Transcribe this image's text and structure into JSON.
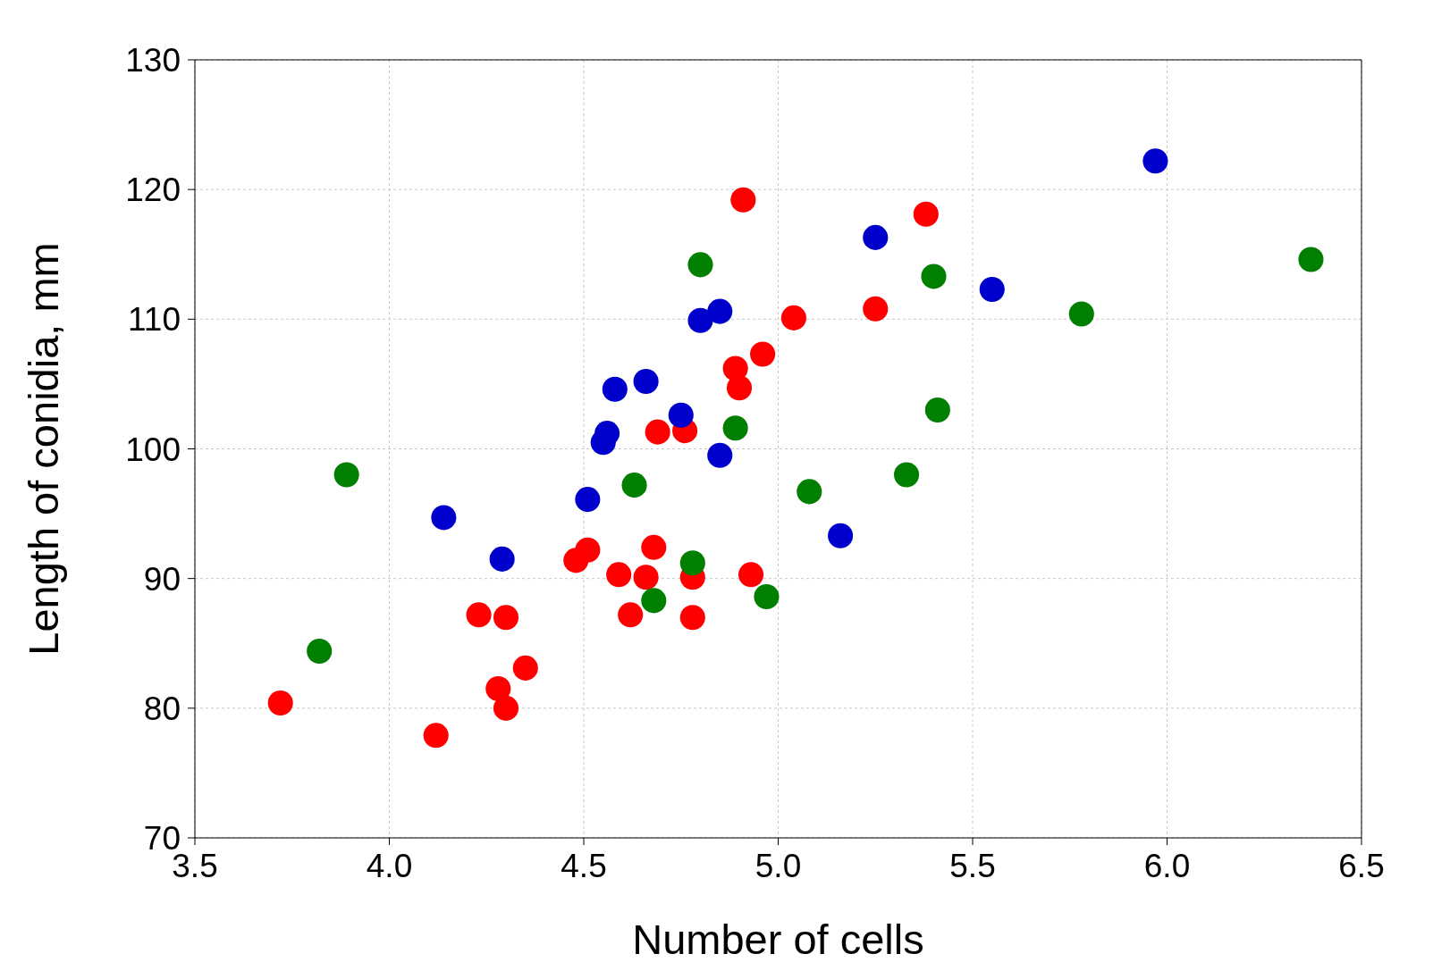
{
  "chart_data": {
    "type": "scatter",
    "xlabel": "Number of cells",
    "ylabel": "Length of conidia, mm",
    "xlim": [
      3.5,
      6.5
    ],
    "xticks": [
      {
        "value": 3.5,
        "label": "3.5"
      },
      {
        "value": 4,
        "label": "4.0"
      },
      {
        "value": 4.5,
        "label": "4.5"
      },
      {
        "value": 5,
        "label": "5.0"
      },
      {
        "value": 5.5,
        "label": "5.5"
      },
      {
        "value": 6,
        "label": "6.0"
      },
      {
        "value": 6.5,
        "label": "6.5"
      }
    ],
    "ylim": [
      70,
      130
    ],
    "yticks": [
      70,
      80,
      90,
      100,
      110,
      120,
      130
    ],
    "grid": true,
    "marker": "circle",
    "series": [
      {
        "color": "#ff0000",
        "x": [
          3.72,
          4.12,
          4.23,
          4.3,
          4.28,
          4.3,
          4.35,
          4.48,
          4.51,
          4.59,
          4.62,
          4.66,
          4.68,
          4.69,
          4.76,
          4.78,
          4.78,
          4.93,
          4.89,
          4.9,
          4.96,
          4.91,
          5.04,
          5.25,
          5.38
        ],
        "values": [
          80.4,
          77.9,
          87.2,
          87.0,
          81.5,
          80.0,
          83.1,
          91.4,
          92.2,
          90.3,
          87.2,
          90.1,
          92.4,
          101.3,
          101.4,
          90.1,
          87.0,
          90.3,
          106.2,
          104.7,
          107.3,
          119.2,
          110.1,
          110.8,
          118.1
        ]
      },
      {
        "color": "#0000cc",
        "x": [
          4.14,
          4.29,
          4.51,
          4.56,
          4.55,
          4.58,
          4.66,
          4.75,
          4.85,
          4.8,
          4.85,
          5.16,
          5.25,
          5.55,
          5.97
        ],
        "values": [
          94.7,
          91.5,
          96.1,
          101.2,
          100.5,
          104.6,
          105.2,
          102.6,
          99.5,
          109.9,
          110.6,
          93.3,
          116.3,
          112.3,
          122.2
        ]
      },
      {
        "color": "#007f00",
        "x": [
          3.82,
          3.89,
          4.63,
          4.68,
          4.78,
          4.8,
          4.89,
          4.97,
          5.08,
          5.33,
          5.4,
          5.41,
          5.78,
          6.37
        ],
        "values": [
          84.4,
          98.0,
          97.2,
          88.3,
          91.2,
          114.2,
          101.6,
          88.6,
          96.7,
          98.0,
          113.3,
          103.0,
          110.4,
          114.6
        ]
      }
    ]
  }
}
